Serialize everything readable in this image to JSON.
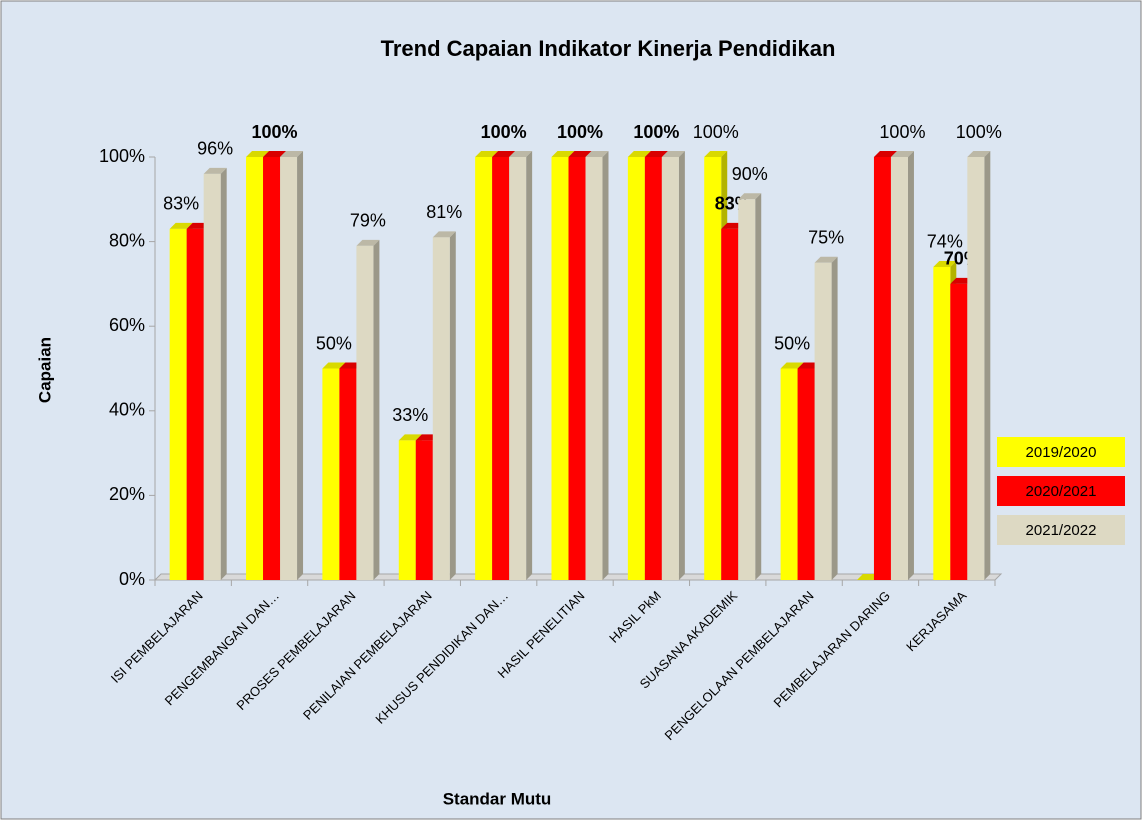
{
  "chart_data": {
    "type": "bar3d",
    "title": "Trend Capaian Indikator Kinerja  Pendidikan",
    "x_label": "Standar Mutu",
    "y_label": "Capaian",
    "categories": [
      "ISI PEMBELAJARAN",
      "PENGEMBANGAN DAN…",
      "PROSES PEMBELAJARAN",
      "PENILAIAN PEMBELAJARAN",
      "KHUSUS PENDIDIKAN DAN…",
      "HASIL PENELITIAN",
      "HASIL PkM",
      "SUASANA AKADEMIK",
      "PENGELOLAAN PEMBELAJARAN",
      "PEMBELAJARAN DARING",
      "KERJASAMA"
    ],
    "series": [
      {
        "name": "2019/2020",
        "color": "#ffff00",
        "values": [
          83,
          100,
          50,
          33,
          100,
          100,
          100,
          100,
          50,
          0,
          74
        ],
        "value_labels": [
          "83%",
          null,
          "50%",
          "33%",
          null,
          null,
          null,
          "100%",
          "50%",
          null,
          "74%"
        ]
      },
      {
        "name": "2020/2021",
        "color": "#ff0000",
        "label_bold": true,
        "values": [
          83,
          100,
          50,
          33,
          100,
          100,
          100,
          83,
          50,
          100,
          70
        ],
        "value_labels": [
          null,
          "100%",
          null,
          null,
          "100%",
          "100%",
          "100%",
          "83%",
          null,
          null,
          "70%"
        ]
      },
      {
        "name": "2021/2022",
        "color": "#ddd9c3",
        "values": [
          96,
          100,
          79,
          81,
          100,
          100,
          100,
          90,
          75,
          100,
          100
        ],
        "value_labels": [
          "96%",
          null,
          "79%",
          "81%",
          null,
          null,
          null,
          "90%",
          "75%",
          "100%",
          "100%"
        ]
      }
    ],
    "ylim": [
      0,
      100
    ],
    "yticks": [
      {
        "value": 0,
        "label": "0%"
      },
      {
        "value": 20,
        "label": "20%"
      },
      {
        "value": 40,
        "label": "40%"
      },
      {
        "value": 60,
        "label": "60%"
      },
      {
        "value": 80,
        "label": "80%"
      },
      {
        "value": 100,
        "label": "100%"
      }
    ],
    "legend": "right"
  }
}
